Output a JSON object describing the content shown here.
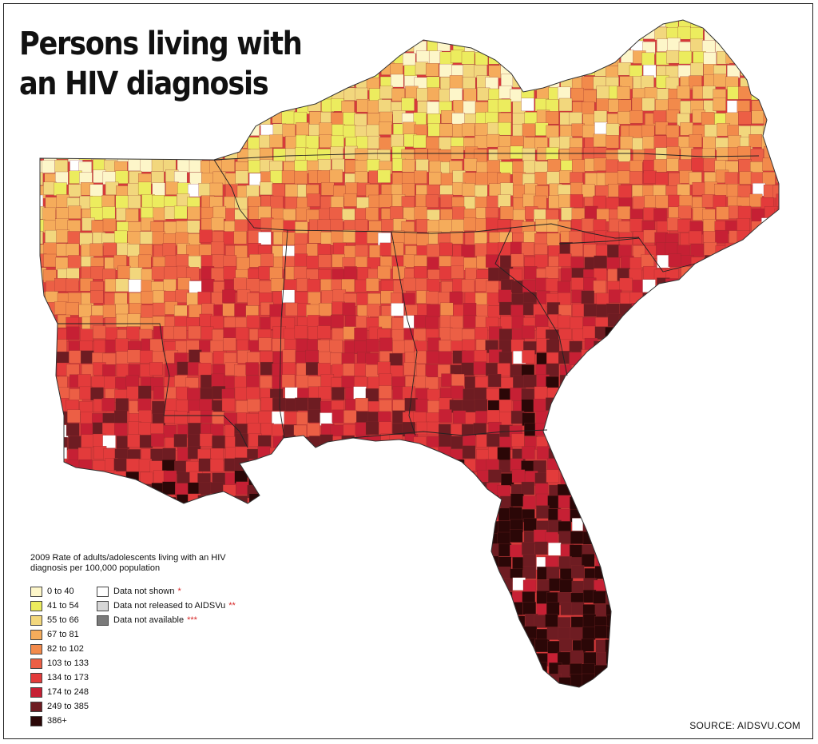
{
  "title": {
    "line1": "Persons living with",
    "line2": "an HIV diagnosis"
  },
  "legend": {
    "title": "2009 Rate of adults/adolescents living with an HIV diagnosis per 100,000 population",
    "bins": [
      {
        "label": "0 to 40",
        "color": "#fdf6c9"
      },
      {
        "label": "41 to 54",
        "color": "#ecec5e"
      },
      {
        "label": "55 to 66",
        "color": "#f2d77d"
      },
      {
        "label": "67 to 81",
        "color": "#f5ac5b"
      },
      {
        "label": "82 to 102",
        "color": "#f28a4b"
      },
      {
        "label": "103 to 133",
        "color": "#ec5f45"
      },
      {
        "label": "134 to 173",
        "color": "#e33b3b"
      },
      {
        "label": "174 to 248",
        "color": "#c62034"
      },
      {
        "label": "249 to 385",
        "color": "#6e1c22"
      },
      {
        "label": "386+",
        "color": "#2b0707"
      }
    ],
    "special": [
      {
        "label": "Data not shown",
        "asterisks": "*",
        "color": "#ffffff"
      },
      {
        "label": "Data not released to AIDSVu",
        "asterisks": "**",
        "color": "#d6d6d6"
      },
      {
        "label": "Data not available",
        "asterisks": "***",
        "color": "#7a7a7a"
      }
    ]
  },
  "source": "SOURCE: AIDSVU.COM",
  "map": {
    "region": "Southeastern United States",
    "states": [
      "Arkansas",
      "Tennessee",
      "Kentucky",
      "Virginia",
      "North Carolina",
      "South Carolina",
      "Georgia",
      "Alabama",
      "Mississippi",
      "Louisiana",
      "Florida"
    ]
  }
}
